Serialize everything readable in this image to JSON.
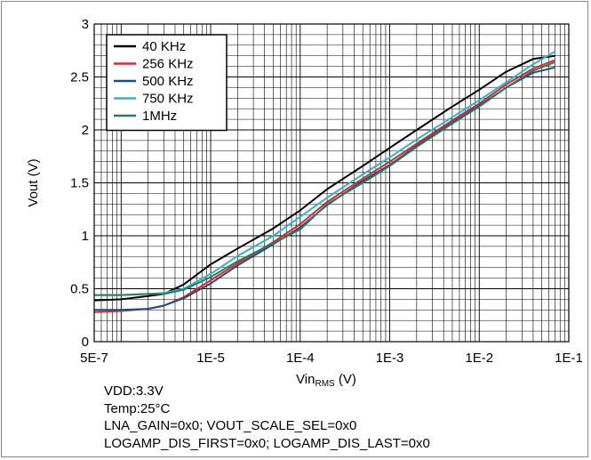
{
  "chart_data": {
    "type": "line",
    "xlabel": {
      "main": "Vin",
      "sub": "RMS",
      "unit": " (V)"
    },
    "ylabel": "Vout (V)",
    "x_scale": "log",
    "xlim": [
      5e-07,
      0.1
    ],
    "ylim": [
      0,
      3
    ],
    "x_ticks": [
      {
        "value": 5e-07,
        "label": "5E-7"
      },
      {
        "value": 1e-05,
        "label": "1E-5"
      },
      {
        "value": 0.0001,
        "label": "1E-4"
      },
      {
        "value": 0.001,
        "label": "1E-3"
      },
      {
        "value": 0.01,
        "label": "1E-2"
      },
      {
        "value": 0.1,
        "label": "1E-1"
      }
    ],
    "y_ticks": [
      {
        "value": 0,
        "label": "0"
      },
      {
        "value": 0.5,
        "label": "0.5"
      },
      {
        "value": 1,
        "label": "1"
      },
      {
        "value": 1.5,
        "label": "1.5"
      },
      {
        "value": 2,
        "label": "2"
      },
      {
        "value": 2.5,
        "label": "2.5"
      },
      {
        "value": 3,
        "label": "3"
      }
    ],
    "grid": true,
    "legend_position": "top-left",
    "series": [
      {
        "name": "40 KHz",
        "color": "#000000",
        "points": [
          [
            5e-07,
            0.39
          ],
          [
            1e-06,
            0.4
          ],
          [
            2e-06,
            0.43
          ],
          [
            3e-06,
            0.45
          ],
          [
            5e-06,
            0.54
          ],
          [
            1e-05,
            0.73
          ],
          [
            2e-05,
            0.88
          ],
          [
            5e-05,
            1.07
          ],
          [
            0.0001,
            1.24
          ],
          [
            0.0002,
            1.44
          ],
          [
            0.0005,
            1.66
          ],
          [
            0.001,
            1.83
          ],
          [
            0.002,
            2.0
          ],
          [
            0.005,
            2.22
          ],
          [
            0.01,
            2.38
          ],
          [
            0.02,
            2.55
          ],
          [
            0.04,
            2.67
          ],
          [
            0.07,
            2.7
          ]
        ]
      },
      {
        "name": "256 KHz",
        "color": "#e4232b",
        "points": [
          [
            5e-07,
            0.28
          ],
          [
            1e-06,
            0.29
          ],
          [
            2e-06,
            0.31
          ],
          [
            3e-06,
            0.34
          ],
          [
            5e-06,
            0.42
          ],
          [
            1e-05,
            0.58
          ],
          [
            2e-05,
            0.74
          ],
          [
            5e-05,
            0.94
          ],
          [
            0.0001,
            1.11
          ],
          [
            0.0002,
            1.32
          ],
          [
            0.0005,
            1.54
          ],
          [
            0.001,
            1.7
          ],
          [
            0.002,
            1.87
          ],
          [
            0.005,
            2.09
          ],
          [
            0.01,
            2.25
          ],
          [
            0.02,
            2.43
          ],
          [
            0.04,
            2.58
          ],
          [
            0.07,
            2.66
          ]
        ]
      },
      {
        "name": "500 KHz",
        "color": "#1c4f7f",
        "points": [
          [
            5e-07,
            0.3
          ],
          [
            1e-06,
            0.3
          ],
          [
            2e-06,
            0.31
          ],
          [
            3e-06,
            0.34
          ],
          [
            5e-06,
            0.41
          ],
          [
            1e-05,
            0.55
          ],
          [
            2e-05,
            0.72
          ],
          [
            5e-05,
            0.92
          ],
          [
            0.0001,
            1.08
          ],
          [
            0.0002,
            1.29
          ],
          [
            0.0005,
            1.52
          ],
          [
            0.001,
            1.67
          ],
          [
            0.002,
            1.85
          ],
          [
            0.005,
            2.07
          ],
          [
            0.01,
            2.23
          ],
          [
            0.02,
            2.4
          ],
          [
            0.04,
            2.54
          ],
          [
            0.07,
            2.59
          ]
        ]
      },
      {
        "name": "750 KHz",
        "color": "#25b9d0",
        "points": [
          [
            5e-07,
            0.44
          ],
          [
            1e-06,
            0.44
          ],
          [
            2e-06,
            0.45
          ],
          [
            3e-06,
            0.46
          ],
          [
            5e-06,
            0.5
          ],
          [
            1e-05,
            0.64
          ],
          [
            2e-05,
            0.81
          ],
          [
            5e-05,
            1.0
          ],
          [
            0.0001,
            1.18
          ],
          [
            0.0002,
            1.36
          ],
          [
            0.0005,
            1.58
          ],
          [
            0.001,
            1.74
          ],
          [
            0.002,
            1.91
          ],
          [
            0.005,
            2.12
          ],
          [
            0.01,
            2.28
          ],
          [
            0.02,
            2.45
          ],
          [
            0.04,
            2.62
          ],
          [
            0.07,
            2.74
          ]
        ]
      },
      {
        "name": "1MHz",
        "color": "#2f7a5a",
        "points": [
          [
            5e-07,
            0.44
          ],
          [
            1e-06,
            0.44
          ],
          [
            2e-06,
            0.45
          ],
          [
            3e-06,
            0.45
          ],
          [
            5e-06,
            0.49
          ],
          [
            1e-05,
            0.61
          ],
          [
            2e-05,
            0.76
          ],
          [
            5e-05,
            0.93
          ],
          [
            0.0001,
            1.06
          ],
          [
            0.0002,
            1.3
          ],
          [
            0.0005,
            1.5
          ],
          [
            0.001,
            1.66
          ],
          [
            0.002,
            1.84
          ],
          [
            0.005,
            2.06
          ],
          [
            0.01,
            2.22
          ],
          [
            0.02,
            2.4
          ],
          [
            0.04,
            2.56
          ],
          [
            0.07,
            2.64
          ]
        ]
      }
    ]
  },
  "notes": [
    "VDD:3.3V",
    "Temp:25°C",
    "LNA_GAIN=0x0; VOUT_SCALE_SEL=0x0",
    "LOGAMP_DIS_FIRST=0x0; LOGAMP_DIS_LAST=0x0"
  ]
}
